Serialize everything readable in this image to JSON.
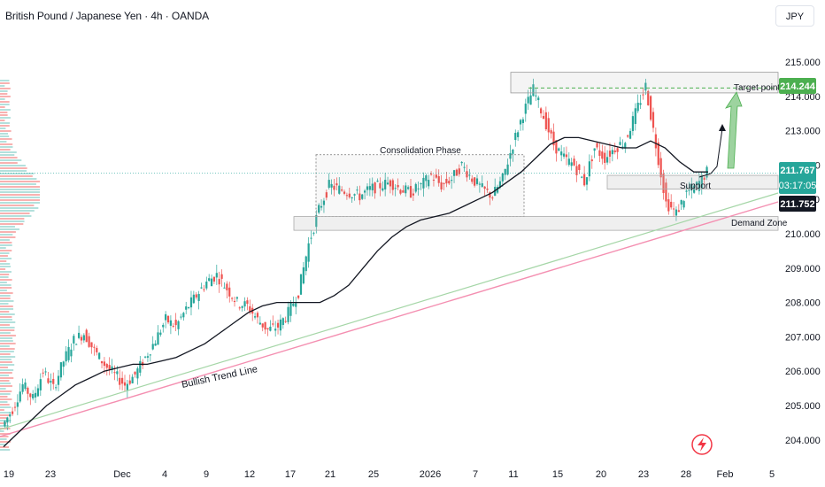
{
  "header": {
    "title": "British Pound / Japanese Yen · 4h · OANDA",
    "currency": "JPY"
  },
  "colors": {
    "up": "#26a69a",
    "down": "#ef5350",
    "ma": "#131722",
    "trend": "#f48fb1",
    "trend2": "#a5d6a7",
    "target": "#4caf50",
    "price_dark": "#131722"
  },
  "annotations": {
    "consolidation": "Consolidation Phase",
    "target": "Target point",
    "support": "Support",
    "demand": "Demand Zone",
    "trend": "Bullish Trend Line"
  },
  "price_tags": {
    "target": "214.244",
    "last": "211.767",
    "countdown": "03:17:05",
    "current": "211.752"
  },
  "chart_data": {
    "type": "line",
    "title": "British Pound / Japanese Yen · 4h · OANDA",
    "y_axis": {
      "unit": "JPY",
      "ticks": [
        "215.000",
        "214.000",
        "213.000",
        "212.000",
        "211.000",
        "210.000",
        "209.000",
        "208.000",
        "207.000",
        "206.000",
        "205.000",
        "204.000"
      ],
      "range": [
        203.6,
        215.7
      ]
    },
    "x_axis": {
      "ticks": [
        "19",
        "23",
        "Dec",
        "4",
        "9",
        "12",
        "17",
        "21",
        "25",
        "2026",
        "7",
        "11",
        "15",
        "20",
        "23",
        "28",
        "Feb",
        "5"
      ]
    },
    "series": [
      {
        "price": [
          204.4,
          204.9,
          205.6,
          205.2,
          206.0,
          205.5,
          206.3,
          206.9,
          207.1,
          206.6,
          206.2,
          205.9,
          205.6,
          205.9,
          206.4,
          206.9,
          207.5,
          207.3,
          207.8,
          208.2,
          208.6,
          208.8,
          208.4,
          208.0,
          207.9,
          207.5,
          207.2,
          207.3,
          207.7,
          208.3,
          209.7,
          210.7,
          211.4,
          211.3,
          211.2,
          211.1,
          211.3,
          211.4,
          211.5,
          211.3,
          211.2,
          211.4,
          211.7,
          211.4,
          211.6,
          212.0,
          211.6,
          211.3,
          211.1,
          211.6,
          212.6,
          213.5,
          214.2,
          213.4,
          212.6,
          212.2,
          212.0,
          211.5,
          212.5,
          212.2,
          212.5,
          212.7,
          213.5,
          214.3,
          212.6,
          210.9,
          210.6,
          211.2,
          211.4,
          211.8
        ],
        "ma": [
          203.8,
          204.2,
          204.6,
          205.0,
          205.3,
          205.6,
          205.8,
          206.0,
          206.1,
          206.2,
          206.2,
          206.3,
          206.4,
          206.6,
          206.8,
          207.1,
          207.4,
          207.7,
          207.9,
          208.0,
          208.0,
          208.0,
          208.0,
          208.2,
          208.5,
          209.0,
          209.5,
          209.9,
          210.2,
          210.4,
          210.5,
          210.6,
          210.8,
          211.0,
          211.2,
          211.5,
          211.8,
          212.2,
          212.6,
          212.8,
          212.8,
          212.7,
          212.6,
          212.5,
          212.5,
          212.7,
          212.5,
          212.1,
          211.8,
          211.8
        ]
      }
    ],
    "levels": {
      "target": 214.244,
      "last": 211.767,
      "current": 211.752,
      "support": [
        211.3,
        211.7
      ],
      "demand": [
        210.1,
        210.5
      ],
      "resistance": [
        214.1,
        214.7
      ],
      "consolidation": [
        210.5,
        212.3
      ]
    },
    "legend": "none",
    "grid": false
  }
}
